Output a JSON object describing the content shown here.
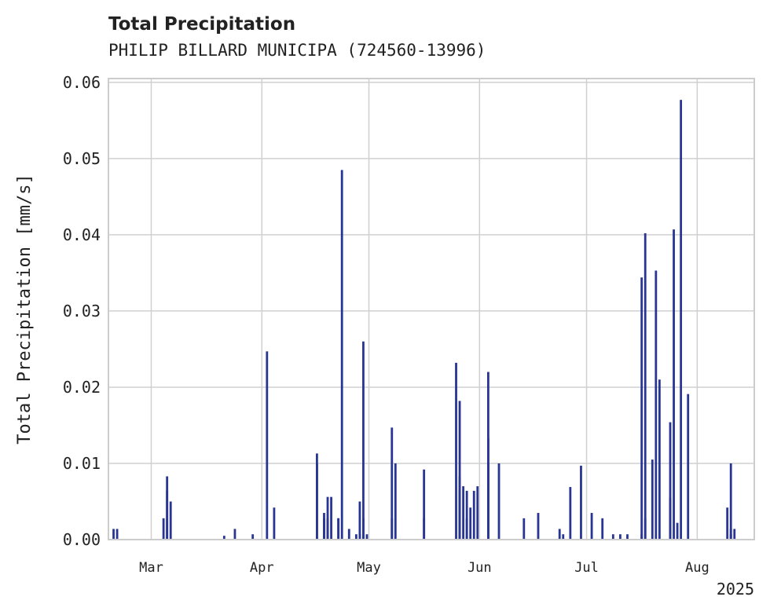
{
  "header": {
    "title": "Total Precipitation",
    "subtitle": "PHILIP BILLARD MUNICIPA (724560-13996)"
  },
  "chart_data": {
    "type": "bar",
    "title": "Total Precipitation",
    "subtitle": "PHILIP BILLARD MUNICIPA (724560-13996)",
    "xlabel": "",
    "ylabel": "Total Precipitation [mm/s]",
    "x_axis": {
      "type": "date",
      "range": [
        "2025-02-17",
        "2025-08-17"
      ],
      "tick_dates": [
        "2025-03-01",
        "2025-04-01",
        "2025-05-01",
        "2025-06-01",
        "2025-07-01",
        "2025-08-01"
      ],
      "tick_labels": [
        "Mar",
        "Apr",
        "May",
        "Jun",
        "Jul",
        "Aug"
      ],
      "offset_label": "2025"
    },
    "y_axis": {
      "range": [
        0,
        0.0605
      ],
      "ticks": [
        0.0,
        0.01,
        0.02,
        0.03,
        0.04,
        0.05,
        0.06
      ],
      "tick_labels": [
        "0.00",
        "0.01",
        "0.02",
        "0.03",
        "0.04",
        "0.05",
        "0.06"
      ]
    },
    "grid": true,
    "color": "#283593",
    "series": [
      {
        "x": [
          "2025-02-18",
          "2025-02-19",
          "2025-03-04",
          "2025-03-05",
          "2025-03-05",
          "2025-03-06",
          "2025-03-21",
          "2025-03-24",
          "2025-03-29",
          "2025-04-02",
          "2025-04-04",
          "2025-04-16",
          "2025-04-16",
          "2025-04-18",
          "2025-04-18",
          "2025-04-19",
          "2025-04-19",
          "2025-04-20",
          "2025-04-22",
          "2025-04-22",
          "2025-04-23",
          "2025-04-25",
          "2025-04-27",
          "2025-04-28",
          "2025-04-28",
          "2025-04-29",
          "2025-04-29",
          "2025-04-30",
          "2025-05-07",
          "2025-05-07",
          "2025-05-08",
          "2025-05-16",
          "2025-05-16",
          "2025-05-25",
          "2025-05-26",
          "2025-05-26",
          "2025-05-26",
          "2025-05-27",
          "2025-05-28",
          "2025-05-28",
          "2025-05-29",
          "2025-05-30",
          "2025-05-31",
          "2025-06-03",
          "2025-06-03",
          "2025-06-03",
          "2025-06-06",
          "2025-06-13",
          "2025-06-17",
          "2025-06-23",
          "2025-06-24",
          "2025-06-26",
          "2025-06-29",
          "2025-07-02",
          "2025-07-05",
          "2025-07-08",
          "2025-07-10",
          "2025-07-12",
          "2025-07-16",
          "2025-07-16",
          "2025-07-17",
          "2025-07-17",
          "2025-07-19",
          "2025-07-20",
          "2025-07-21",
          "2025-07-24",
          "2025-07-24",
          "2025-07-25",
          "2025-07-26",
          "2025-07-27",
          "2025-07-29",
          "2025-08-09",
          "2025-08-10",
          "2025-08-10",
          "2025-08-10",
          "2025-08-11"
        ],
        "values": [
          0.0014,
          0.0014,
          0.0028,
          0.0083,
          0.0064,
          0.005,
          0.0005,
          0.0014,
          0.0007,
          0.0247,
          0.0042,
          0.01,
          0.0113,
          0.0028,
          0.0035,
          0.0028,
          0.0056,
          0.0056,
          0.0028,
          0.0028,
          0.0485,
          0.0014,
          0.0007,
          0.0007,
          0.005,
          0.026,
          0.0028,
          0.0007,
          0.0028,
          0.0147,
          0.01,
          0.0028,
          0.0092,
          0.0232,
          0.0182,
          0.0064,
          0.0083,
          0.007,
          0.0064,
          0.0028,
          0.0042,
          0.0064,
          0.007,
          0.0133,
          0.022,
          0.01,
          0.01,
          0.0028,
          0.0035,
          0.0014,
          0.0007,
          0.0069,
          0.0097,
          0.0035,
          0.0028,
          0.0007,
          0.0007,
          0.0007,
          0.0007,
          0.0344,
          0.0028,
          0.0402,
          0.0105,
          0.0353,
          0.021,
          0.0154,
          0.0055,
          0.0407,
          0.0022,
          0.0577,
          0.0191,
          0.0042,
          0.01,
          0.0007,
          0.0014,
          0.0014
        ]
      }
    ]
  }
}
